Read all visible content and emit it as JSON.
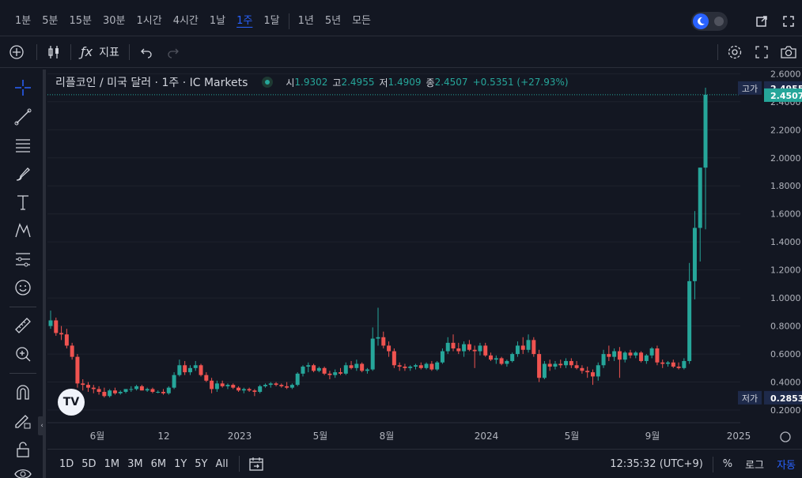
{
  "timeframes": [
    {
      "label": "1분",
      "active": false
    },
    {
      "label": "5분",
      "active": false
    },
    {
      "label": "15분",
      "active": false
    },
    {
      "label": "30분",
      "active": false
    },
    {
      "label": "1시간",
      "active": false
    },
    {
      "label": "4시간",
      "active": false
    },
    {
      "label": "1날",
      "active": false
    },
    {
      "label": "1주",
      "active": true
    },
    {
      "label": "1달",
      "active": false
    },
    {
      "label": "1년",
      "active": false
    },
    {
      "label": "5년",
      "active": false
    },
    {
      "label": "모든",
      "active": false
    }
  ],
  "toolbar": {
    "indicators_label": "지표"
  },
  "legend": {
    "symbol": "리플코인 / 미국 달러 · 1주 · IC Markets",
    "open_key": "시",
    "open": "1.9302",
    "high_key": "고",
    "high": "2.4955",
    "low_key": "저",
    "low": "1.4909",
    "close_key": "종",
    "close": "2.4507",
    "change": "+0.5351 (+27.93%)"
  },
  "price_tags": {
    "high_label": "고가",
    "high_value": "2.4955",
    "last_value": "2.4507",
    "low_label": "저가",
    "low_value": "0.2853"
  },
  "bottom": {
    "ranges": [
      "1D",
      "5D",
      "1M",
      "3M",
      "6M",
      "1Y",
      "5Y",
      "All"
    ],
    "clock": "12:35:32 (UTC+9)",
    "percent": "%",
    "log": "로그",
    "auto": "자동"
  },
  "logo_text": "TV",
  "colors": {
    "up": "#26a69a",
    "down": "#ef5350",
    "background": "#131722",
    "grid": "#1e222d",
    "accent": "#2962ff"
  },
  "chart_data": {
    "type": "candlestick",
    "title": "리플코인 / 미국 달러 · 1주 · IC Markets",
    "interval": "1주",
    "y_axis": {
      "ticks": [
        "0.2000",
        "0.4000",
        "0.6000",
        "0.8000",
        "1.0000",
        "1.2000",
        "1.4000",
        "1.6000",
        "1.8000",
        "2.0000",
        "2.2000",
        "2.4000",
        "2.6000"
      ],
      "range": [
        0.11,
        2.63
      ],
      "scale": "linear"
    },
    "x_axis": {
      "ticks": [
        "6월",
        "12",
        "2023",
        "5월",
        "8월",
        "2024",
        "5월",
        "9월",
        "2025"
      ]
    },
    "candles": [
      {
        "o": 0.8,
        "h": 0.91,
        "l": 0.78,
        "c": 0.84
      },
      {
        "o": 0.84,
        "h": 0.86,
        "l": 0.73,
        "c": 0.75
      },
      {
        "o": 0.75,
        "h": 0.8,
        "l": 0.7,
        "c": 0.74
      },
      {
        "o": 0.74,
        "h": 0.78,
        "l": 0.64,
        "c": 0.66
      },
      {
        "o": 0.66,
        "h": 0.68,
        "l": 0.56,
        "c": 0.58
      },
      {
        "o": 0.58,
        "h": 0.6,
        "l": 0.36,
        "c": 0.39
      },
      {
        "o": 0.39,
        "h": 0.42,
        "l": 0.34,
        "c": 0.38
      },
      {
        "o": 0.38,
        "h": 0.4,
        "l": 0.33,
        "c": 0.36
      },
      {
        "o": 0.36,
        "h": 0.38,
        "l": 0.32,
        "c": 0.35
      },
      {
        "o": 0.35,
        "h": 0.37,
        "l": 0.31,
        "c": 0.33
      },
      {
        "o": 0.33,
        "h": 0.36,
        "l": 0.29,
        "c": 0.3
      },
      {
        "o": 0.3,
        "h": 0.35,
        "l": 0.29,
        "c": 0.34
      },
      {
        "o": 0.34,
        "h": 0.36,
        "l": 0.31,
        "c": 0.32
      },
      {
        "o": 0.32,
        "h": 0.34,
        "l": 0.31,
        "c": 0.33
      },
      {
        "o": 0.33,
        "h": 0.35,
        "l": 0.32,
        "c": 0.35
      },
      {
        "o": 0.35,
        "h": 0.37,
        "l": 0.33,
        "c": 0.35
      },
      {
        "o": 0.35,
        "h": 0.38,
        "l": 0.34,
        "c": 0.37
      },
      {
        "o": 0.37,
        "h": 0.38,
        "l": 0.34,
        "c": 0.34
      },
      {
        "o": 0.34,
        "h": 0.36,
        "l": 0.33,
        "c": 0.35
      },
      {
        "o": 0.35,
        "h": 0.36,
        "l": 0.32,
        "c": 0.33
      },
      {
        "o": 0.33,
        "h": 0.34,
        "l": 0.32,
        "c": 0.33
      },
      {
        "o": 0.33,
        "h": 0.35,
        "l": 0.31,
        "c": 0.32
      },
      {
        "o": 0.32,
        "h": 0.37,
        "l": 0.31,
        "c": 0.36
      },
      {
        "o": 0.36,
        "h": 0.47,
        "l": 0.35,
        "c": 0.45
      },
      {
        "o": 0.45,
        "h": 0.56,
        "l": 0.44,
        "c": 0.52
      },
      {
        "o": 0.52,
        "h": 0.55,
        "l": 0.45,
        "c": 0.47
      },
      {
        "o": 0.47,
        "h": 0.52,
        "l": 0.45,
        "c": 0.5
      },
      {
        "o": 0.5,
        "h": 0.55,
        "l": 0.48,
        "c": 0.52
      },
      {
        "o": 0.52,
        "h": 0.53,
        "l": 0.44,
        "c": 0.45
      },
      {
        "o": 0.45,
        "h": 0.47,
        "l": 0.4,
        "c": 0.41
      },
      {
        "o": 0.41,
        "h": 0.43,
        "l": 0.32,
        "c": 0.35
      },
      {
        "o": 0.35,
        "h": 0.41,
        "l": 0.33,
        "c": 0.39
      },
      {
        "o": 0.39,
        "h": 0.41,
        "l": 0.36,
        "c": 0.37
      },
      {
        "o": 0.37,
        "h": 0.39,
        "l": 0.35,
        "c": 0.38
      },
      {
        "o": 0.38,
        "h": 0.39,
        "l": 0.35,
        "c": 0.36
      },
      {
        "o": 0.36,
        "h": 0.37,
        "l": 0.33,
        "c": 0.34
      },
      {
        "o": 0.34,
        "h": 0.36,
        "l": 0.32,
        "c": 0.35
      },
      {
        "o": 0.35,
        "h": 0.36,
        "l": 0.33,
        "c": 0.34
      },
      {
        "o": 0.34,
        "h": 0.35,
        "l": 0.3,
        "c": 0.33
      },
      {
        "o": 0.33,
        "h": 0.38,
        "l": 0.32,
        "c": 0.37
      },
      {
        "o": 0.37,
        "h": 0.39,
        "l": 0.36,
        "c": 0.38
      },
      {
        "o": 0.38,
        "h": 0.4,
        "l": 0.36,
        "c": 0.39
      },
      {
        "o": 0.39,
        "h": 0.4,
        "l": 0.37,
        "c": 0.38
      },
      {
        "o": 0.38,
        "h": 0.39,
        "l": 0.36,
        "c": 0.37
      },
      {
        "o": 0.37,
        "h": 0.4,
        "l": 0.35,
        "c": 0.36
      },
      {
        "o": 0.36,
        "h": 0.39,
        "l": 0.35,
        "c": 0.38
      },
      {
        "o": 0.38,
        "h": 0.47,
        "l": 0.37,
        "c": 0.46
      },
      {
        "o": 0.46,
        "h": 0.52,
        "l": 0.44,
        "c": 0.51
      },
      {
        "o": 0.51,
        "h": 0.54,
        "l": 0.47,
        "c": 0.52
      },
      {
        "o": 0.52,
        "h": 0.53,
        "l": 0.47,
        "c": 0.48
      },
      {
        "o": 0.48,
        "h": 0.51,
        "l": 0.47,
        "c": 0.5
      },
      {
        "o": 0.5,
        "h": 0.51,
        "l": 0.45,
        "c": 0.46
      },
      {
        "o": 0.46,
        "h": 0.48,
        "l": 0.42,
        "c": 0.45
      },
      {
        "o": 0.45,
        "h": 0.49,
        "l": 0.43,
        "c": 0.47
      },
      {
        "o": 0.47,
        "h": 0.5,
        "l": 0.45,
        "c": 0.46
      },
      {
        "o": 0.46,
        "h": 0.54,
        "l": 0.45,
        "c": 0.52
      },
      {
        "o": 0.52,
        "h": 0.55,
        "l": 0.49,
        "c": 0.5
      },
      {
        "o": 0.5,
        "h": 0.56,
        "l": 0.48,
        "c": 0.53
      },
      {
        "o": 0.53,
        "h": 0.54,
        "l": 0.47,
        "c": 0.48
      },
      {
        "o": 0.48,
        "h": 0.5,
        "l": 0.46,
        "c": 0.49
      },
      {
        "o": 0.49,
        "h": 0.79,
        "l": 0.48,
        "c": 0.71
      },
      {
        "o": 0.71,
        "h": 0.93,
        "l": 0.66,
        "c": 0.72
      },
      {
        "o": 0.72,
        "h": 0.76,
        "l": 0.64,
        "c": 0.66
      },
      {
        "o": 0.66,
        "h": 0.69,
        "l": 0.58,
        "c": 0.62
      },
      {
        "o": 0.62,
        "h": 0.64,
        "l": 0.5,
        "c": 0.52
      },
      {
        "o": 0.52,
        "h": 0.54,
        "l": 0.48,
        "c": 0.51
      },
      {
        "o": 0.51,
        "h": 0.53,
        "l": 0.48,
        "c": 0.5
      },
      {
        "o": 0.5,
        "h": 0.52,
        "l": 0.48,
        "c": 0.51
      },
      {
        "o": 0.51,
        "h": 0.53,
        "l": 0.49,
        "c": 0.52
      },
      {
        "o": 0.52,
        "h": 0.54,
        "l": 0.49,
        "c": 0.5
      },
      {
        "o": 0.5,
        "h": 0.54,
        "l": 0.49,
        "c": 0.53
      },
      {
        "o": 0.53,
        "h": 0.55,
        "l": 0.48,
        "c": 0.49
      },
      {
        "o": 0.49,
        "h": 0.55,
        "l": 0.48,
        "c": 0.54
      },
      {
        "o": 0.54,
        "h": 0.64,
        "l": 0.53,
        "c": 0.62
      },
      {
        "o": 0.62,
        "h": 0.72,
        "l": 0.6,
        "c": 0.68
      },
      {
        "o": 0.68,
        "h": 0.74,
        "l": 0.62,
        "c": 0.64
      },
      {
        "o": 0.64,
        "h": 0.68,
        "l": 0.6,
        "c": 0.62
      },
      {
        "o": 0.62,
        "h": 0.69,
        "l": 0.58,
        "c": 0.67
      },
      {
        "o": 0.67,
        "h": 0.7,
        "l": 0.62,
        "c": 0.63
      },
      {
        "o": 0.63,
        "h": 0.66,
        "l": 0.5,
        "c": 0.62
      },
      {
        "o": 0.62,
        "h": 0.68,
        "l": 0.59,
        "c": 0.66
      },
      {
        "o": 0.66,
        "h": 0.68,
        "l": 0.58,
        "c": 0.59
      },
      {
        "o": 0.59,
        "h": 0.61,
        "l": 0.55,
        "c": 0.56
      },
      {
        "o": 0.56,
        "h": 0.59,
        "l": 0.53,
        "c": 0.57
      },
      {
        "o": 0.57,
        "h": 0.58,
        "l": 0.52,
        "c": 0.53
      },
      {
        "o": 0.53,
        "h": 0.56,
        "l": 0.51,
        "c": 0.55
      },
      {
        "o": 0.55,
        "h": 0.61,
        "l": 0.54,
        "c": 0.6
      },
      {
        "o": 0.6,
        "h": 0.69,
        "l": 0.58,
        "c": 0.66
      },
      {
        "o": 0.66,
        "h": 0.72,
        "l": 0.6,
        "c": 0.63
      },
      {
        "o": 0.63,
        "h": 0.74,
        "l": 0.61,
        "c": 0.7
      },
      {
        "o": 0.7,
        "h": 0.72,
        "l": 0.58,
        "c": 0.6
      },
      {
        "o": 0.6,
        "h": 0.63,
        "l": 0.4,
        "c": 0.43
      },
      {
        "o": 0.43,
        "h": 0.55,
        "l": 0.42,
        "c": 0.53
      },
      {
        "o": 0.53,
        "h": 0.56,
        "l": 0.48,
        "c": 0.51
      },
      {
        "o": 0.51,
        "h": 0.55,
        "l": 0.49,
        "c": 0.53
      },
      {
        "o": 0.53,
        "h": 0.56,
        "l": 0.5,
        "c": 0.52
      },
      {
        "o": 0.52,
        "h": 0.57,
        "l": 0.5,
        "c": 0.55
      },
      {
        "o": 0.55,
        "h": 0.57,
        "l": 0.5,
        "c": 0.52
      },
      {
        "o": 0.52,
        "h": 0.55,
        "l": 0.49,
        "c": 0.5
      },
      {
        "o": 0.5,
        "h": 0.52,
        "l": 0.46,
        "c": 0.48
      },
      {
        "o": 0.48,
        "h": 0.51,
        "l": 0.43,
        "c": 0.47
      },
      {
        "o": 0.47,
        "h": 0.49,
        "l": 0.38,
        "c": 0.44
      },
      {
        "o": 0.44,
        "h": 0.54,
        "l": 0.41,
        "c": 0.52
      },
      {
        "o": 0.52,
        "h": 0.63,
        "l": 0.5,
        "c": 0.6
      },
      {
        "o": 0.6,
        "h": 0.66,
        "l": 0.55,
        "c": 0.58
      },
      {
        "o": 0.58,
        "h": 0.64,
        "l": 0.55,
        "c": 0.62
      },
      {
        "o": 0.62,
        "h": 0.65,
        "l": 0.43,
        "c": 0.56
      },
      {
        "o": 0.56,
        "h": 0.62,
        "l": 0.54,
        "c": 0.61
      },
      {
        "o": 0.61,
        "h": 0.63,
        "l": 0.57,
        "c": 0.59
      },
      {
        "o": 0.59,
        "h": 0.62,
        "l": 0.57,
        "c": 0.61
      },
      {
        "o": 0.61,
        "h": 0.62,
        "l": 0.54,
        "c": 0.55
      },
      {
        "o": 0.55,
        "h": 0.6,
        "l": 0.53,
        "c": 0.59
      },
      {
        "o": 0.59,
        "h": 0.65,
        "l": 0.57,
        "c": 0.64
      },
      {
        "o": 0.64,
        "h": 0.66,
        "l": 0.52,
        "c": 0.54
      },
      {
        "o": 0.54,
        "h": 0.56,
        "l": 0.5,
        "c": 0.53
      },
      {
        "o": 0.53,
        "h": 0.55,
        "l": 0.51,
        "c": 0.54
      },
      {
        "o": 0.54,
        "h": 0.56,
        "l": 0.5,
        "c": 0.51
      },
      {
        "o": 0.51,
        "h": 0.54,
        "l": 0.49,
        "c": 0.5
      },
      {
        "o": 0.5,
        "h": 0.57,
        "l": 0.49,
        "c": 0.55
      },
      {
        "o": 0.55,
        "h": 1.25,
        "l": 0.53,
        "c": 1.12
      },
      {
        "o": 1.12,
        "h": 1.62,
        "l": 0.99,
        "c": 1.5
      },
      {
        "o": 1.5,
        "h": 1.93,
        "l": 1.26,
        "c": 1.93
      },
      {
        "o": 1.93,
        "h": 2.5,
        "l": 1.49,
        "c": 2.45
      }
    ]
  }
}
